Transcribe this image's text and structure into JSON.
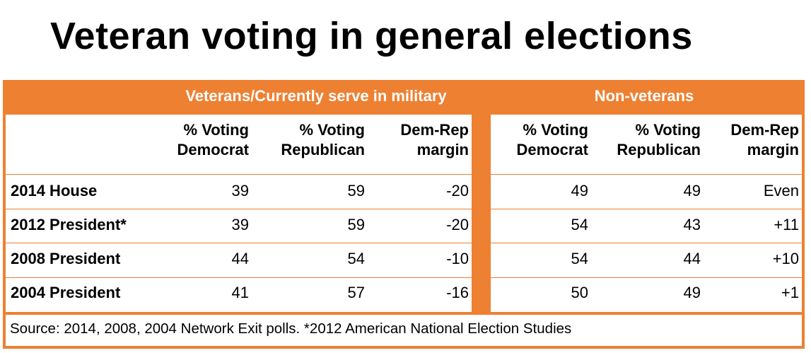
{
  "title": "Veteran voting in general elections",
  "chart_data": {
    "type": "table",
    "title": "Veteran voting in general elections",
    "groups": [
      "Veterans/Currently  serve in military",
      "Non-veterans"
    ],
    "columns": [
      {
        "line1": "% Voting",
        "line2": "Democrat"
      },
      {
        "line1": "% Voting",
        "line2": "Republican"
      },
      {
        "line1": "Dem-Rep",
        "line2": "margin"
      }
    ],
    "rows": [
      {
        "label": "2014 House",
        "veterans": [
          "39",
          "59",
          "-20"
        ],
        "nonveterans": [
          "49",
          "49",
          "Even"
        ]
      },
      {
        "label": "2012 President*",
        "veterans": [
          "39",
          "59",
          "-20"
        ],
        "nonveterans": [
          "54",
          "43",
          "+11"
        ]
      },
      {
        "label": "2008 President",
        "veterans": [
          "44",
          "54",
          "-10"
        ],
        "nonveterans": [
          "54",
          "44",
          "+10"
        ]
      },
      {
        "label": "2004 President",
        "veterans": [
          "41",
          "57",
          "-16"
        ],
        "nonveterans": [
          "50",
          "49",
          "+1"
        ]
      }
    ],
    "source": "Source: 2014, 2008, 2004 Network Exit polls. *2012 American National Election Studies",
    "colors": {
      "accent": "#EE8032",
      "text": "#000000",
      "header_text": "#FFFFFF"
    }
  }
}
